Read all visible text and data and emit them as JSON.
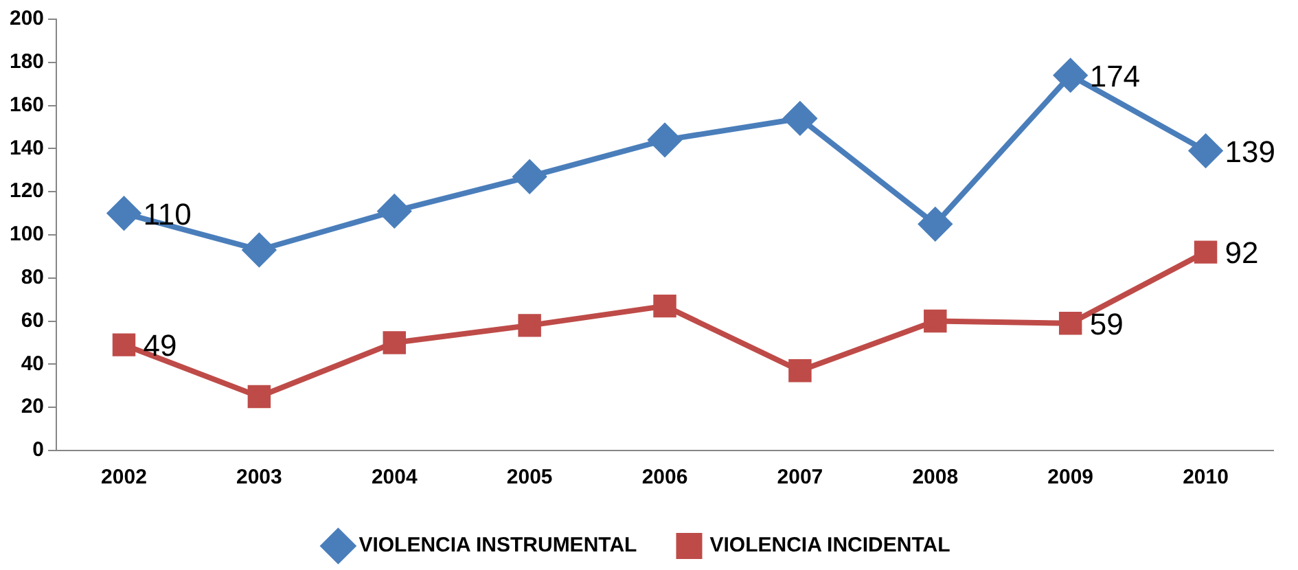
{
  "chart_data": {
    "type": "line",
    "categories": [
      "2002",
      "2003",
      "2004",
      "2005",
      "2006",
      "2007",
      "2008",
      "2009",
      "2010"
    ],
    "ylim": [
      0,
      200
    ],
    "yticks": [
      0,
      20,
      40,
      60,
      80,
      100,
      120,
      140,
      160,
      180,
      200
    ],
    "grid": false,
    "legend": "bottom",
    "series": [
      {
        "name": "VIOLENCIA INSTRUMENTAL",
        "color": "#4a7ebb",
        "marker": "diamond",
        "values": [
          110,
          93,
          111,
          127,
          144,
          154,
          105,
          174,
          139
        ],
        "value_labels": [
          "110",
          null,
          null,
          null,
          null,
          null,
          null,
          "174",
          "139"
        ]
      },
      {
        "name": "VIOLENCIA INCIDENTAL",
        "color": "#be4b48",
        "marker": "square",
        "values": [
          49,
          25,
          50,
          58,
          67,
          37,
          60,
          59,
          92
        ],
        "value_labels": [
          "49",
          null,
          null,
          null,
          null,
          null,
          null,
          "59",
          "92"
        ]
      }
    ]
  }
}
